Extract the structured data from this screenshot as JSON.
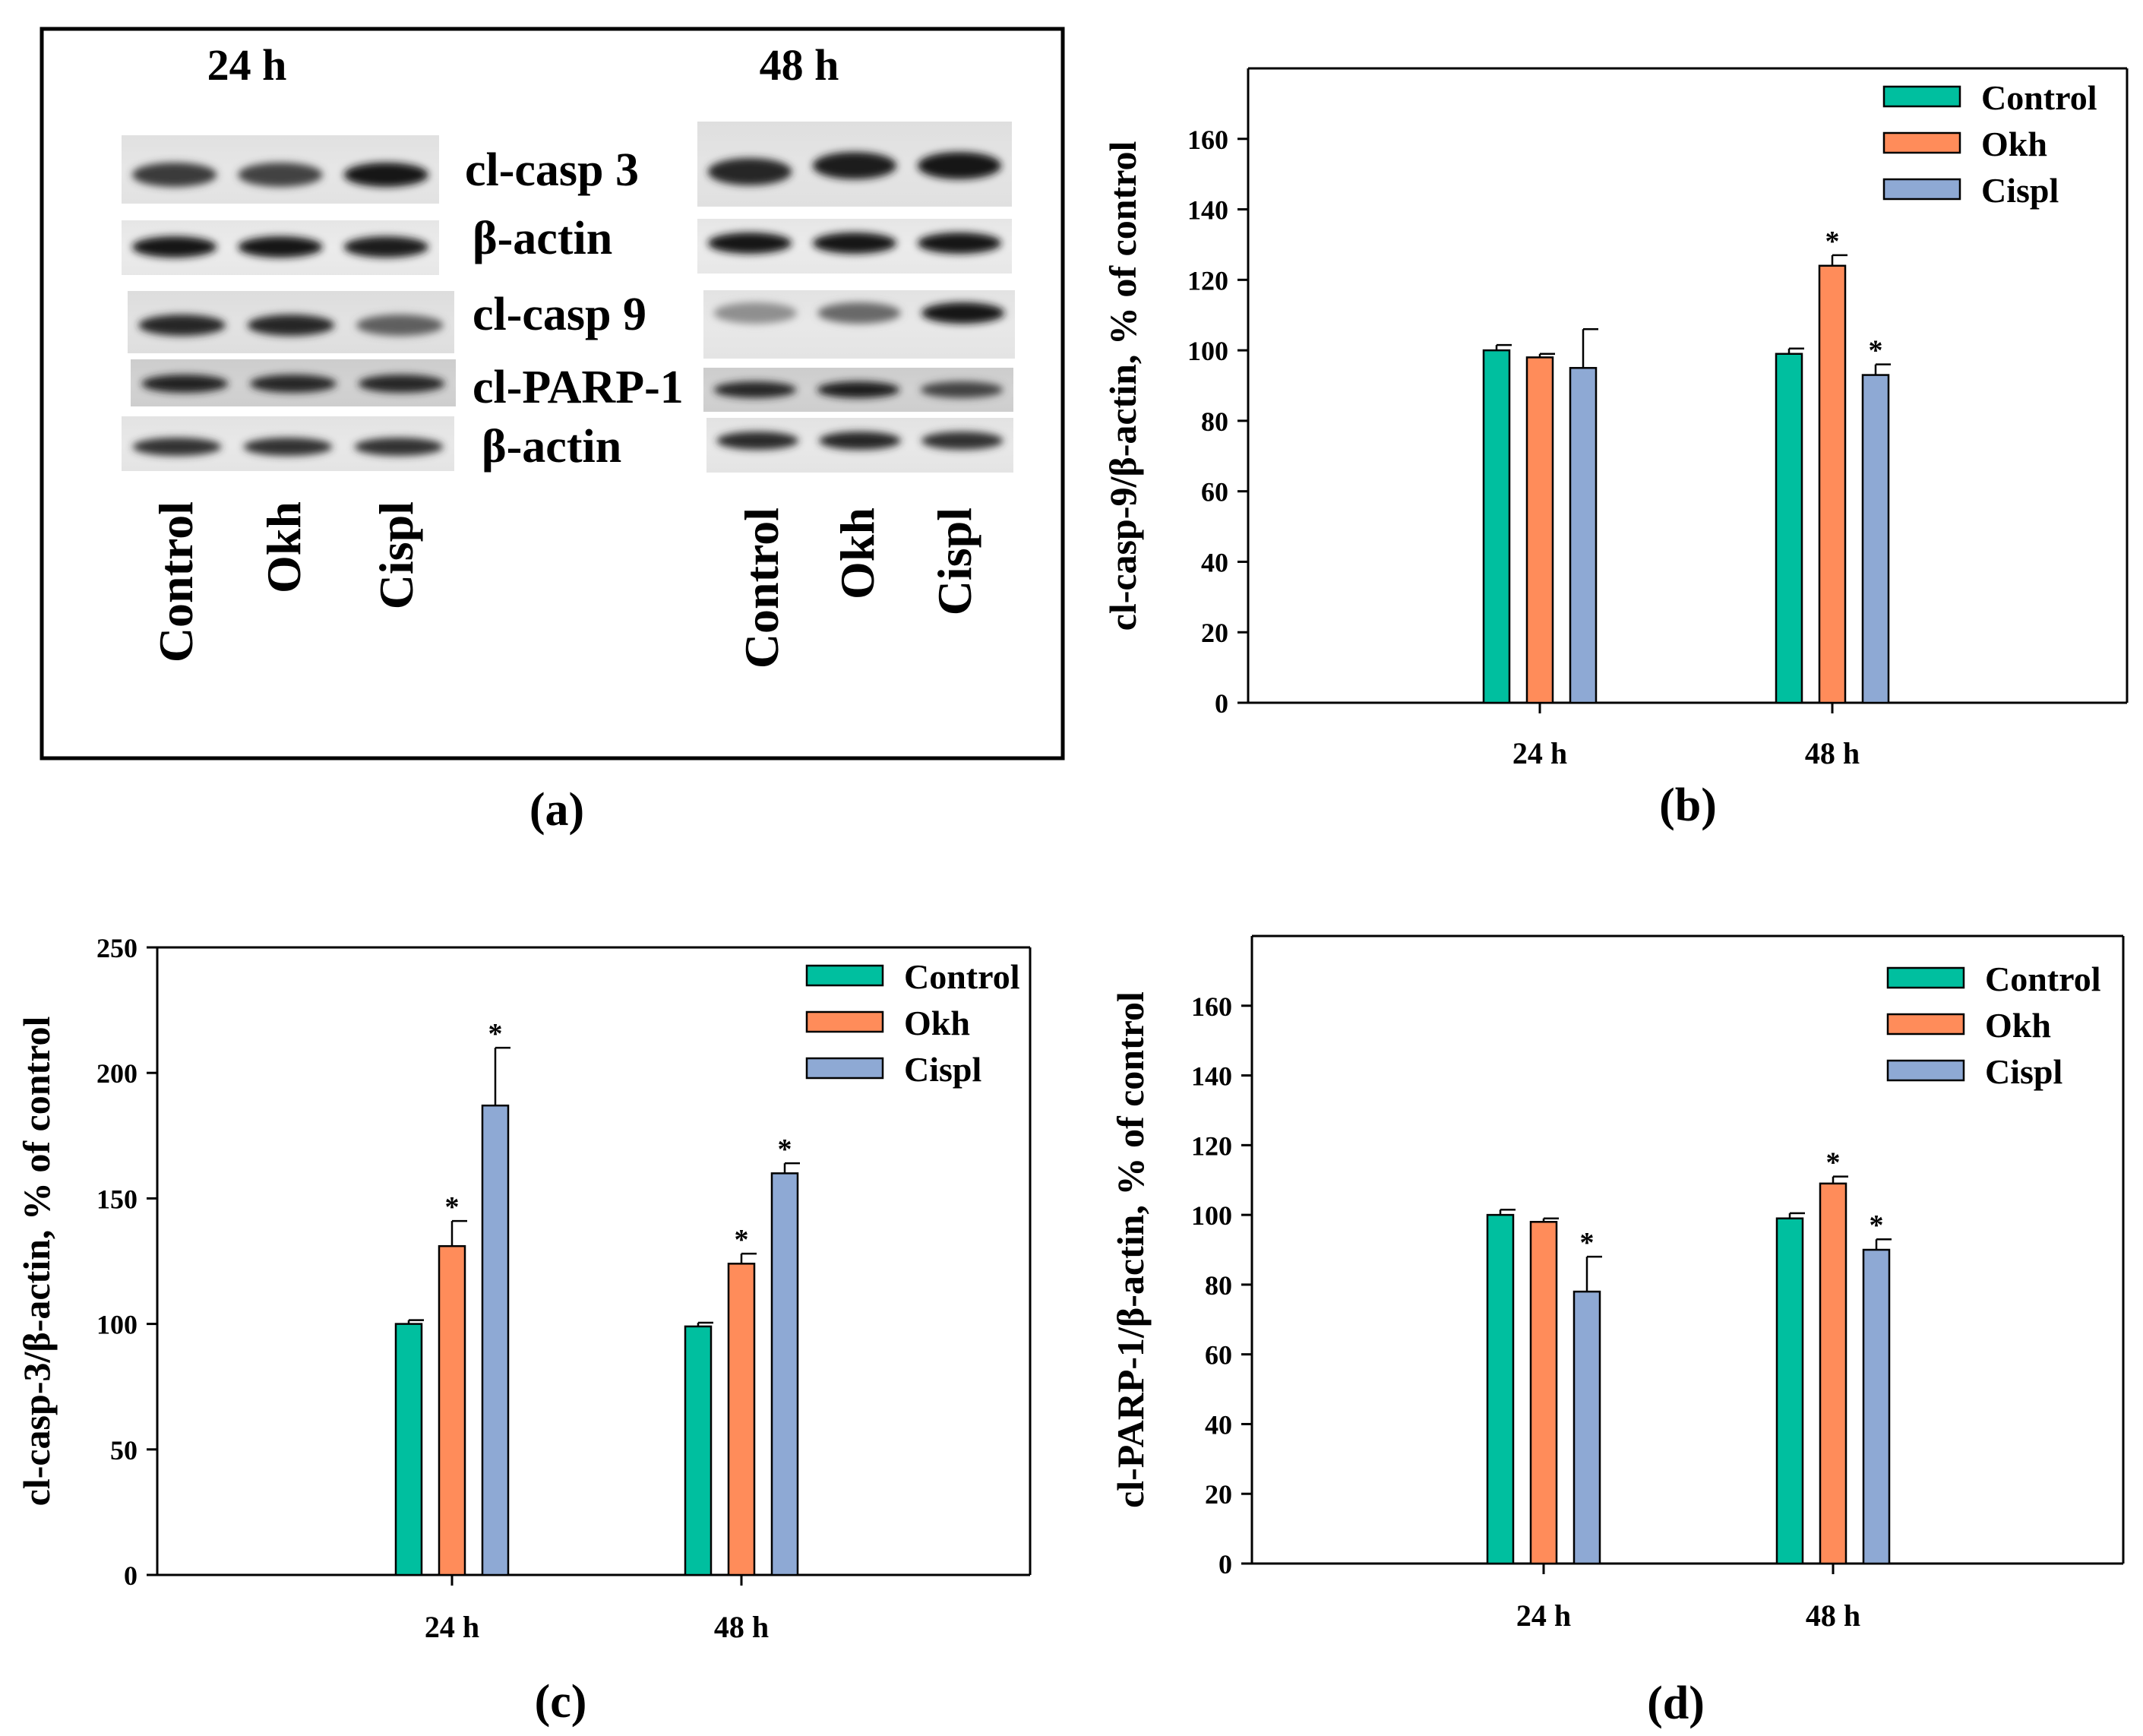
{
  "colors": {
    "control": "#00bf9f",
    "okh": "#ff8c5a",
    "cispl": "#8ea9d4",
    "axis": "#000000"
  },
  "panel_a": {
    "letter": "(a)",
    "time_24": "24 h",
    "time_48": "48 h",
    "proteins": [
      "cl-casp 3",
      "β-actin",
      "cl-casp 9",
      "cl-PARP-1",
      "β-actin"
    ],
    "lanes_24": [
      "Control",
      "Okh",
      "Cispl"
    ],
    "lanes_48": [
      "Control",
      "Okh",
      "Cispl"
    ]
  },
  "chart_data": [
    {
      "type": "bar",
      "panel": "(b)",
      "title": "",
      "xlabel": "",
      "ylabel": "cl-casp-9/β-actin, % of control",
      "ylim": [
        0,
        180
      ],
      "yticks": [
        0,
        20,
        40,
        60,
        80,
        100,
        120,
        140,
        160
      ],
      "categories": [
        "24 h",
        "48 h"
      ],
      "legend_position": "top-right",
      "series": [
        {
          "name": "Control",
          "values": [
            100,
            99
          ],
          "errors": [
            1.5,
            1.5
          ],
          "significant": [
            false,
            false
          ]
        },
        {
          "name": "Okh",
          "values": [
            98,
            124
          ],
          "errors": [
            1,
            3
          ],
          "significant": [
            false,
            true
          ]
        },
        {
          "name": "Cispl",
          "values": [
            95,
            93
          ],
          "errors": [
            11,
            3
          ],
          "significant": [
            false,
            true
          ]
        }
      ],
      "significance_marker": "*"
    },
    {
      "type": "bar",
      "panel": "(c)",
      "title": "",
      "xlabel": "",
      "ylabel": "cl-casp-3/β-actin, % of control",
      "ylim": [
        0,
        250
      ],
      "yticks": [
        0,
        50,
        100,
        150,
        200,
        250
      ],
      "categories": [
        "24 h",
        "48 h"
      ],
      "legend_position": "top-right",
      "series": [
        {
          "name": "Control",
          "values": [
            100,
            99
          ],
          "errors": [
            1.5,
            1.5
          ],
          "significant": [
            false,
            false
          ]
        },
        {
          "name": "Okh",
          "values": [
            131,
            124
          ],
          "errors": [
            10,
            4
          ],
          "significant": [
            true,
            true
          ]
        },
        {
          "name": "Cispl",
          "values": [
            187,
            160
          ],
          "errors": [
            23,
            4
          ],
          "significant": [
            true,
            true
          ]
        }
      ],
      "significance_marker": "*"
    },
    {
      "type": "bar",
      "panel": "(d)",
      "title": "",
      "xlabel": "",
      "ylabel": "cl-PARP-1/β-actin, % of control",
      "ylim": [
        0,
        180
      ],
      "yticks": [
        0,
        20,
        40,
        60,
        80,
        100,
        120,
        140,
        160
      ],
      "categories": [
        "24 h",
        "48 h"
      ],
      "legend_position": "top-right",
      "series": [
        {
          "name": "Control",
          "values": [
            100,
            99
          ],
          "errors": [
            1.5,
            1.5
          ],
          "significant": [
            false,
            false
          ]
        },
        {
          "name": "Okh",
          "values": [
            98,
            109
          ],
          "errors": [
            1,
            2
          ],
          "significant": [
            false,
            true
          ]
        },
        {
          "name": "Cispl",
          "values": [
            78,
            90
          ],
          "errors": [
            10,
            3
          ],
          "significant": [
            true,
            true
          ]
        }
      ],
      "significance_marker": "*"
    }
  ]
}
